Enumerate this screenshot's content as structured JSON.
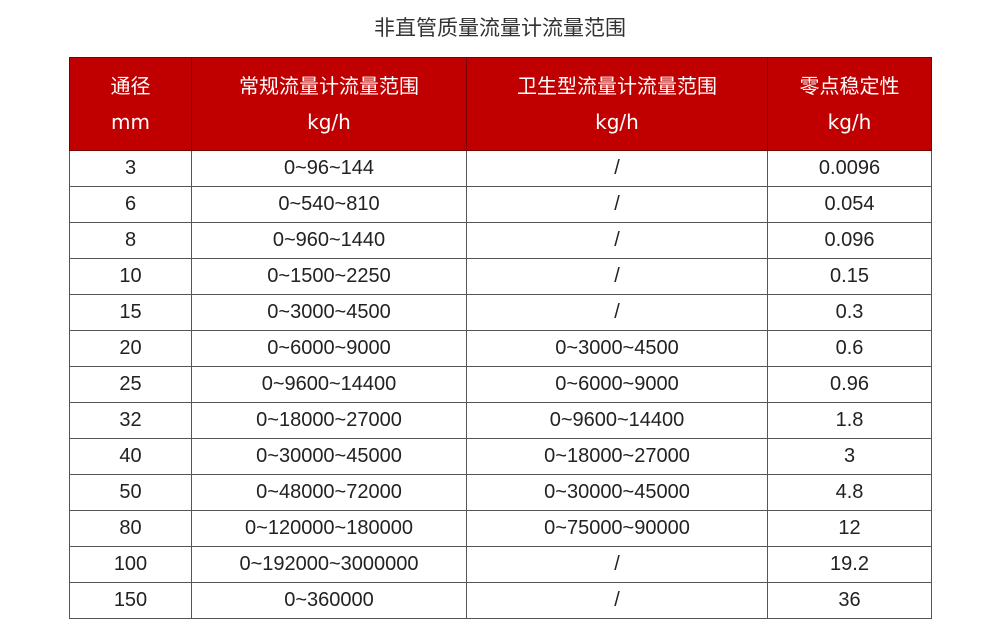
{
  "title": "非直管质量流量计流量范围",
  "header_color": "#c00000",
  "columns": [
    {
      "label": "通径",
      "unit": "mm"
    },
    {
      "label": "常规流量计流量范围",
      "unit": "kg/h"
    },
    {
      "label": "卫生型流量计流量范围",
      "unit": "kg/h"
    },
    {
      "label": "零点稳定性",
      "unit": "kg/h"
    }
  ],
  "rows": [
    [
      "3",
      "0~96~144",
      "/",
      "0.0096"
    ],
    [
      "6",
      "0~540~810",
      "/",
      "0.054"
    ],
    [
      "8",
      "0~960~1440",
      "/",
      "0.096"
    ],
    [
      "10",
      "0~1500~2250",
      "/",
      "0.15"
    ],
    [
      "15",
      "0~3000~4500",
      "/",
      "0.3"
    ],
    [
      "20",
      "0~6000~9000",
      "0~3000~4500",
      "0.6"
    ],
    [
      "25",
      "0~9600~14400",
      "0~6000~9000",
      "0.96"
    ],
    [
      "32",
      "0~18000~27000",
      "0~9600~14400",
      "1.8"
    ],
    [
      "40",
      "0~30000~45000",
      "0~18000~27000",
      "3"
    ],
    [
      "50",
      "0~48000~72000",
      "0~30000~45000",
      "4.8"
    ],
    [
      "80",
      "0~120000~180000",
      "0~75000~90000",
      "12"
    ],
    [
      "100",
      "0~192000~3000000",
      "/",
      "19.2"
    ],
    [
      "150",
      "0~360000",
      "/",
      "36"
    ]
  ]
}
